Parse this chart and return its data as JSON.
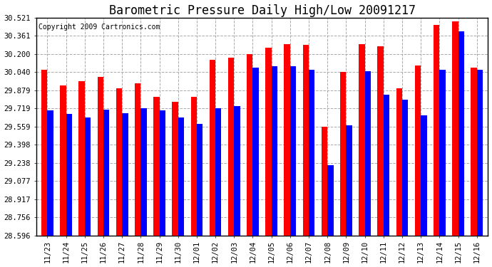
{
  "title": "Barometric Pressure Daily High/Low 20091217",
  "copyright": "Copyright 2009 Cartronics.com",
  "dates": [
    "11/23",
    "11/24",
    "11/25",
    "11/26",
    "11/27",
    "11/28",
    "11/29",
    "11/30",
    "12/01",
    "12/02",
    "12/03",
    "12/04",
    "12/05",
    "12/06",
    "12/07",
    "12/08",
    "12/09",
    "12/10",
    "12/11",
    "12/12",
    "12/13",
    "12/14",
    "12/15",
    "12/16"
  ],
  "highs": [
    30.06,
    29.92,
    29.96,
    30.0,
    29.9,
    29.94,
    29.82,
    29.78,
    29.82,
    30.15,
    30.17,
    30.2,
    30.26,
    30.29,
    30.28,
    29.56,
    30.04,
    30.29,
    30.27,
    29.9,
    30.1,
    30.46,
    30.49,
    30.08
  ],
  "lows": [
    29.7,
    29.67,
    29.64,
    29.71,
    29.68,
    29.72,
    29.7,
    29.64,
    29.58,
    29.72,
    29.74,
    30.08,
    30.09,
    30.09,
    30.06,
    29.22,
    29.57,
    30.05,
    29.84,
    29.8,
    29.66,
    30.06,
    30.4,
    30.06
  ],
  "yticks": [
    28.596,
    28.756,
    28.917,
    29.077,
    29.238,
    29.398,
    29.559,
    29.719,
    29.879,
    30.04,
    30.2,
    30.361,
    30.521
  ],
  "ymin": 28.596,
  "ymax": 30.521,
  "bar_color_high": "#ff0000",
  "bar_color_low": "#0000ff",
  "bg_color": "#ffffff",
  "grid_color": "#aaaaaa",
  "title_fontsize": 12,
  "copyright_fontsize": 7,
  "bar_width": 0.32
}
